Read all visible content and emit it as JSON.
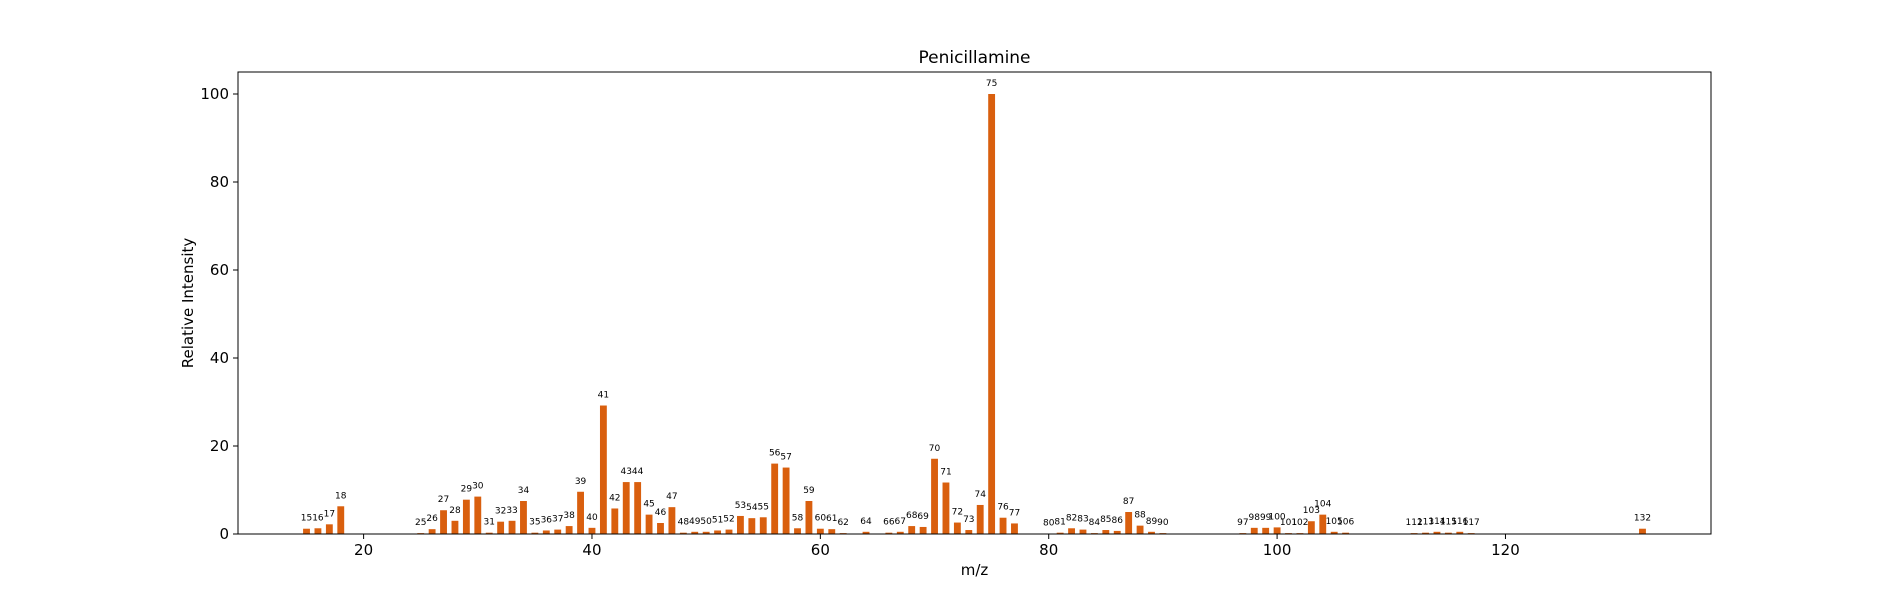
{
  "chart_data": {
    "type": "bar",
    "title": "Penicillamine",
    "xlabel": "m/z",
    "ylabel": "Relative Intensity",
    "xlim": [
      9,
      138
    ],
    "ylim": [
      0,
      105
    ],
    "xticks": [
      20,
      40,
      60,
      80,
      100,
      120
    ],
    "yticks": [
      0,
      20,
      40,
      60,
      80,
      100
    ],
    "bar_color": "#d95f0e",
    "grid": false,
    "legend": "none",
    "bars": [
      {
        "mz": 15,
        "intensity": 1.2
      },
      {
        "mz": 16,
        "intensity": 1.3
      },
      {
        "mz": 17,
        "intensity": 2.2
      },
      {
        "mz": 18,
        "intensity": 6.3
      },
      {
        "mz": 25,
        "intensity": 0.2
      },
      {
        "mz": 26,
        "intensity": 1.1
      },
      {
        "mz": 27,
        "intensity": 5.4
      },
      {
        "mz": 28,
        "intensity": 3.0
      },
      {
        "mz": 29,
        "intensity": 7.8
      },
      {
        "mz": 30,
        "intensity": 8.5
      },
      {
        "mz": 31,
        "intensity": 0.3
      },
      {
        "mz": 32,
        "intensity": 2.8
      },
      {
        "mz": 33,
        "intensity": 3.0
      },
      {
        "mz": 34,
        "intensity": 7.5
      },
      {
        "mz": 35,
        "intensity": 0.3
      },
      {
        "mz": 36,
        "intensity": 0.8
      },
      {
        "mz": 37,
        "intensity": 1.0
      },
      {
        "mz": 38,
        "intensity": 1.8
      },
      {
        "mz": 39,
        "intensity": 9.6
      },
      {
        "mz": 40,
        "intensity": 1.4
      },
      {
        "mz": 41,
        "intensity": 29.2
      },
      {
        "mz": 42,
        "intensity": 5.8
      },
      {
        "mz": 43,
        "intensity": 11.8
      },
      {
        "mz": 44,
        "intensity": 11.8
      },
      {
        "mz": 45,
        "intensity": 4.4
      },
      {
        "mz": 46,
        "intensity": 2.5
      },
      {
        "mz": 47,
        "intensity": 6.1
      },
      {
        "mz": 48,
        "intensity": 0.3
      },
      {
        "mz": 49,
        "intensity": 0.5
      },
      {
        "mz": 50,
        "intensity": 0.5
      },
      {
        "mz": 51,
        "intensity": 0.8
      },
      {
        "mz": 52,
        "intensity": 1.0
      },
      {
        "mz": 53,
        "intensity": 4.1
      },
      {
        "mz": 54,
        "intensity": 3.6
      },
      {
        "mz": 55,
        "intensity": 3.8
      },
      {
        "mz": 56,
        "intensity": 16.0
      },
      {
        "mz": 57,
        "intensity": 15.1
      },
      {
        "mz": 58,
        "intensity": 1.3
      },
      {
        "mz": 59,
        "intensity": 7.5
      },
      {
        "mz": 60,
        "intensity": 1.2
      },
      {
        "mz": 61,
        "intensity": 1.1
      },
      {
        "mz": 62,
        "intensity": 0.2
      },
      {
        "mz": 64,
        "intensity": 0.5
      },
      {
        "mz": 66,
        "intensity": 0.3
      },
      {
        "mz": 67,
        "intensity": 0.5
      },
      {
        "mz": 68,
        "intensity": 1.8
      },
      {
        "mz": 69,
        "intensity": 1.6
      },
      {
        "mz": 70,
        "intensity": 17.1
      },
      {
        "mz": 71,
        "intensity": 11.7
      },
      {
        "mz": 72,
        "intensity": 2.6
      },
      {
        "mz": 73,
        "intensity": 0.9
      },
      {
        "mz": 74,
        "intensity": 6.6
      },
      {
        "mz": 75,
        "intensity": 100.0
      },
      {
        "mz": 76,
        "intensity": 3.7
      },
      {
        "mz": 77,
        "intensity": 2.4
      },
      {
        "mz": 80,
        "intensity": 0.1
      },
      {
        "mz": 81,
        "intensity": 0.3
      },
      {
        "mz": 82,
        "intensity": 1.3
      },
      {
        "mz": 83,
        "intensity": 1.0
      },
      {
        "mz": 84,
        "intensity": 0.2
      },
      {
        "mz": 85,
        "intensity": 0.9
      },
      {
        "mz": 86,
        "intensity": 0.7
      },
      {
        "mz": 87,
        "intensity": 5.0
      },
      {
        "mz": 88,
        "intensity": 1.9
      },
      {
        "mz": 89,
        "intensity": 0.5
      },
      {
        "mz": 90,
        "intensity": 0.2
      },
      {
        "mz": 97,
        "intensity": 0.2
      },
      {
        "mz": 98,
        "intensity": 1.4
      },
      {
        "mz": 99,
        "intensity": 1.4
      },
      {
        "mz": 100,
        "intensity": 1.5
      },
      {
        "mz": 101,
        "intensity": 0.2
      },
      {
        "mz": 102,
        "intensity": 0.2
      },
      {
        "mz": 103,
        "intensity": 2.9
      },
      {
        "mz": 104,
        "intensity": 4.4
      },
      {
        "mz": 105,
        "intensity": 0.5
      },
      {
        "mz": 106,
        "intensity": 0.3
      },
      {
        "mz": 112,
        "intensity": 0.2
      },
      {
        "mz": 113,
        "intensity": 0.3
      },
      {
        "mz": 114,
        "intensity": 0.5
      },
      {
        "mz": 115,
        "intensity": 0.3
      },
      {
        "mz": 116,
        "intensity": 0.5
      },
      {
        "mz": 117,
        "intensity": 0.2
      },
      {
        "mz": 132,
        "intensity": 1.2
      }
    ]
  }
}
